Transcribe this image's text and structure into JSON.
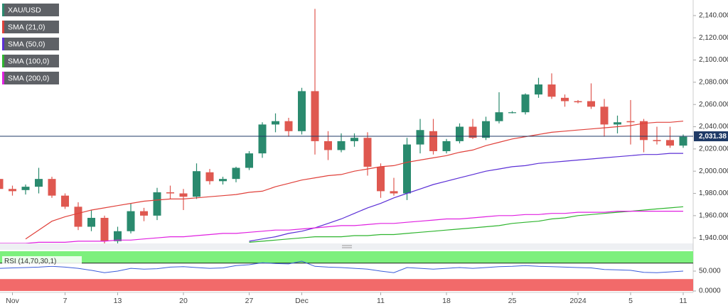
{
  "chart_data": [
    {
      "type": "candlestick",
      "categories": [
        null,
        "Nov",
        null,
        null,
        null,
        "7",
        null,
        null,
        null,
        "13",
        null,
        null,
        null,
        null,
        "20",
        null,
        null,
        null,
        null,
        "27",
        null,
        null,
        null,
        "Dec",
        null,
        null,
        null,
        null,
        null,
        "11",
        null,
        null,
        null,
        null,
        "18",
        null,
        null,
        null,
        null,
        "25",
        null,
        null,
        null,
        null,
        "2024",
        null,
        null,
        null,
        "5",
        null,
        null,
        null,
        "11"
      ],
      "series": [
        {
          "name": "XAU/USD",
          "up_color": "#2a8a6e",
          "down_color": "#df5850",
          "open": [
            1993,
            1984,
            1983,
            1986,
            1993,
            1978,
            1968,
            1950,
            1958,
            1937,
            1946,
            1964,
            1960,
            1981,
            1980,
            1977,
            1999,
            1991,
            1993,
            2003,
            2016,
            2042,
            2045,
            2036,
            2072,
            2027,
            2019,
            2027,
            2030,
            2004,
            1982,
            1980,
            2024,
            2036,
            2018,
            2027,
            2040,
            2030,
            2045,
            2053,
            2053,
            2069,
            2078,
            2066,
            2063,
            2063,
            2058,
            2042,
            2045,
            2045,
            2028,
            2028,
            2023
          ],
          "high": [
            1996,
            1987,
            1988,
            2003,
            1995,
            1980,
            1972,
            1965,
            1960,
            1950,
            1971,
            1967,
            1985,
            1987,
            1984,
            2007,
            2002,
            1995,
            2004,
            2018,
            2044,
            2052,
            2048,
            2075,
            2146,
            2036,
            2034,
            2034,
            2035,
            2007,
            1994,
            2030,
            2047,
            2047,
            2029,
            2043,
            2047,
            2049,
            2071,
            2054,
            2070,
            2084,
            2088,
            2069,
            2064,
            2079,
            2065,
            2050,
            2064,
            2047,
            2040,
            2040,
            2033
          ],
          "low": [
            1980,
            1978,
            1979,
            1980,
            1976,
            1966,
            1947,
            1946,
            1932,
            1932,
            1944,
            1955,
            1956,
            1975,
            1965,
            1975,
            1988,
            1988,
            1990,
            2001,
            2012,
            2035,
            2031,
            2033,
            2015,
            2010,
            2017,
            2022,
            1996,
            1976,
            1978,
            1974,
            2016,
            2015,
            2016,
            2025,
            2029,
            2028,
            2043,
            2052,
            2051,
            2066,
            2065,
            2058,
            2061,
            2056,
            2031,
            2034,
            2024,
            2017,
            2024,
            2021,
            2021
          ],
          "close": [
            1984,
            1982,
            1986,
            1993,
            1978,
            1968,
            1950,
            1958,
            1937,
            1946,
            1964,
            1960,
            1981,
            1980,
            1977,
            2000,
            1991,
            1993,
            2003,
            2016,
            2042,
            2045,
            2036,
            2072,
            2027,
            2019,
            2027,
            2030,
            2004,
            1982,
            1980,
            2024,
            2037,
            2018,
            2027,
            2040,
            2030,
            2045,
            2053,
            2053,
            2069,
            2078,
            2067,
            2063,
            2062,
            2058,
            2042,
            2044,
            2044,
            2028,
            2027,
            2023,
            2031
          ]
        },
        {
          "name": "SMA (21,0)",
          "color": "#e0403a",
          "values": [
            null,
            null,
            1939,
            1947,
            1955,
            1959,
            1962,
            1965,
            1967,
            1969,
            1971,
            1973,
            1974,
            1975,
            1975,
            1976,
            1977,
            1978,
            1979,
            1981,
            1982,
            1986,
            1989,
            1992,
            1994,
            1996,
            1997,
            2000,
            2002,
            2004,
            2005,
            2008,
            2010,
            2012,
            2014,
            2017,
            2019,
            2023,
            2026,
            2029,
            2031,
            2033,
            2035,
            2036,
            2037,
            2038,
            2039,
            2040,
            2041,
            2043,
            2044,
            2044,
            2045
          ]
        },
        {
          "name": "SMA (50,0)",
          "color": "#5b2fd6",
          "values": [
            null,
            null,
            null,
            null,
            null,
            null,
            null,
            null,
            null,
            null,
            null,
            null,
            null,
            null,
            null,
            null,
            null,
            null,
            null,
            1937,
            1939,
            1941,
            1944,
            1946,
            1949,
            1953,
            1957,
            1962,
            1967,
            1971,
            1976,
            1980,
            1984,
            1988,
            1991,
            1994,
            1997,
            2000,
            2002,
            2004,
            2005,
            2007,
            2008,
            2009,
            2010,
            2011,
            2012,
            2013,
            2014,
            2015,
            2015,
            2016,
            2016
          ]
        },
        {
          "name": "SMA (100,0)",
          "color": "#2fb52f",
          "values": [
            null,
            null,
            null,
            null,
            null,
            null,
            null,
            null,
            null,
            null,
            null,
            null,
            null,
            null,
            null,
            null,
            null,
            null,
            null,
            1936,
            1937,
            1938,
            1939,
            1940,
            1941,
            1941,
            1941,
            1942,
            1942,
            1943,
            1943,
            1944,
            1945,
            1946,
            1947,
            1948,
            1949,
            1950,
            1951,
            1953,
            1954,
            1955,
            1957,
            1958,
            1960,
            1961,
            1962,
            1963,
            1964,
            1965,
            1966,
            1967,
            1968
          ]
        },
        {
          "name": "SMA (200,0)",
          "color": "#e020e0",
          "values": [
            1935,
            1935,
            1935,
            1936,
            1936,
            1936,
            1937,
            1937,
            1937,
            1938,
            1938,
            1939,
            1940,
            1941,
            1941,
            1942,
            1943,
            1944,
            1944,
            1945,
            1946,
            1947,
            1947,
            1948,
            1949,
            1950,
            1951,
            1951,
            1952,
            1953,
            1953,
            1954,
            1955,
            1956,
            1957,
            1957,
            1958,
            1959,
            1960,
            1960,
            1961,
            1961,
            1962,
            1962,
            1963,
            1963,
            1963,
            1964,
            1964,
            1964,
            1964,
            1964,
            1964
          ]
        }
      ],
      "ylim": [
        1935,
        2154
      ],
      "yticks": [
        {
          "value": 1940,
          "label": "1,940.000"
        },
        {
          "value": 1960,
          "label": "1,960.000"
        },
        {
          "value": 1980,
          "label": "1,980.000"
        },
        {
          "value": 2000,
          "label": "2,000.000"
        },
        {
          "value": 2020,
          "label": "2,020.000"
        },
        {
          "value": 2040,
          "label": "2,040.000"
        },
        {
          "value": 2060,
          "label": "2,060.000"
        },
        {
          "value": 2080,
          "label": "2,080.000"
        },
        {
          "value": 2100,
          "label": "2,100.000"
        },
        {
          "value": 2120,
          "label": "2,120.000"
        },
        {
          "value": 2140,
          "label": "2,140.000"
        }
      ],
      "last_price": {
        "value": 2031.38,
        "label": "2,031.38"
      },
      "last_price_color": "#1f3a66"
    },
    {
      "type": "line",
      "title": "RSI (14,70,30,1)",
      "series": [
        {
          "color": "#3a5bd9",
          "values": [
            57,
            58,
            59,
            60,
            62,
            60,
            57,
            52,
            46,
            50,
            57,
            55,
            56,
            60,
            61,
            59,
            57,
            58,
            64,
            66,
            71,
            69,
            68,
            75,
            62,
            60,
            59,
            57,
            55,
            50,
            46,
            59,
            57,
            55,
            57,
            59,
            57,
            59,
            61,
            62,
            64,
            62,
            61,
            60,
            59,
            58,
            54,
            53,
            52,
            47,
            46,
            48,
            50
          ]
        }
      ],
      "ylim": [
        0,
        100
      ],
      "yticks": [
        {
          "value": 50,
          "label": "50.000"
        },
        {
          "value": 0,
          "label": "0.0000"
        }
      ],
      "overbought": 70,
      "oversold": 30,
      "overbought_color": "#7df07d",
      "oversold_color": "#f26a6a"
    }
  ]
}
